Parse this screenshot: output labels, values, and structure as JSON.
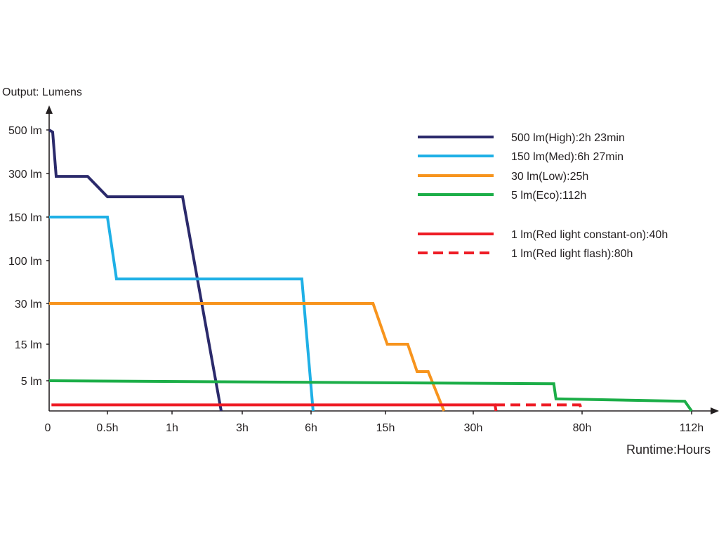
{
  "chart_data": {
    "type": "line",
    "title": "",
    "ylabel": "Output: Lumens",
    "xlabel": "Runtime:Hours",
    "x_scale": "piecewise (non-linear, tick-indexed)",
    "x_ticks": [
      {
        "label": "0",
        "value": 0
      },
      {
        "label": "0.5h",
        "value": 0.5
      },
      {
        "label": "1h",
        "value": 1
      },
      {
        "label": "3h",
        "value": 3
      },
      {
        "label": "6h",
        "value": 6
      },
      {
        "label": "15h",
        "value": 15
      },
      {
        "label": "30h",
        "value": 30
      },
      {
        "label": "80h",
        "value": 80
      },
      {
        "label": "112h",
        "value": 112
      }
    ],
    "y_scale": "piecewise (non-linear, tick-indexed)",
    "y_ticks": [
      {
        "label": "500 lm",
        "value": 500
      },
      {
        "label": "300 lm",
        "value": 300
      },
      {
        "label": "150 lm",
        "value": 150
      },
      {
        "label": "100 lm",
        "value": 100
      },
      {
        "label": "30 lm",
        "value": 30
      },
      {
        "label": "15 lm",
        "value": 15
      },
      {
        "label": "5 lm",
        "value": 5
      }
    ],
    "xlim": [
      0,
      112
    ],
    "ylim": [
      0,
      500
    ],
    "grid": false,
    "legend_position": "top-right",
    "series": [
      {
        "name": "500 lm(High):2h 23min",
        "color": "#2b2a6b",
        "dashed": false,
        "points": [
          [
            0,
            500
          ],
          [
            0.03,
            490
          ],
          [
            0.06,
            290
          ],
          [
            0.33,
            290
          ],
          [
            0.5,
            220
          ],
          [
            1.3,
            220
          ],
          [
            2.4,
            0
          ]
        ]
      },
      {
        "name": "150 lm(Med):6h 27min",
        "color": "#1fb0e6",
        "dashed": false,
        "points": [
          [
            0,
            150
          ],
          [
            0.5,
            150
          ],
          [
            0.57,
            70
          ],
          [
            5.6,
            70
          ],
          [
            6.25,
            0
          ]
        ]
      },
      {
        "name": "30 lm(Low):25h",
        "color": "#f7941d",
        "dashed": false,
        "points": [
          [
            0,
            30
          ],
          [
            13.5,
            30
          ],
          [
            15.3,
            15
          ],
          [
            18.8,
            15
          ],
          [
            20.4,
            7.5
          ],
          [
            22.3,
            7.5
          ],
          [
            25,
            0
          ]
        ]
      },
      {
        "name": "5 lm(Eco):112h",
        "color": "#1cae48",
        "dashed": false,
        "points": [
          [
            0,
            5
          ],
          [
            67,
            4.5
          ],
          [
            68,
            2
          ],
          [
            110,
            1.6
          ],
          [
            112,
            0
          ]
        ]
      },
      {
        "name": "1 lm(Red light constant-on):40h",
        "color": "#ee1c25",
        "dashed": false,
        "points": [
          [
            0.02,
            1
          ],
          [
            40,
            1
          ],
          [
            40.5,
            0
          ]
        ]
      },
      {
        "name": "1 lm(Red light flash):80h",
        "color": "#ee1c25",
        "dashed": true,
        "points": [
          [
            40,
            1
          ],
          [
            79,
            1
          ],
          [
            80,
            0
          ]
        ]
      }
    ]
  }
}
